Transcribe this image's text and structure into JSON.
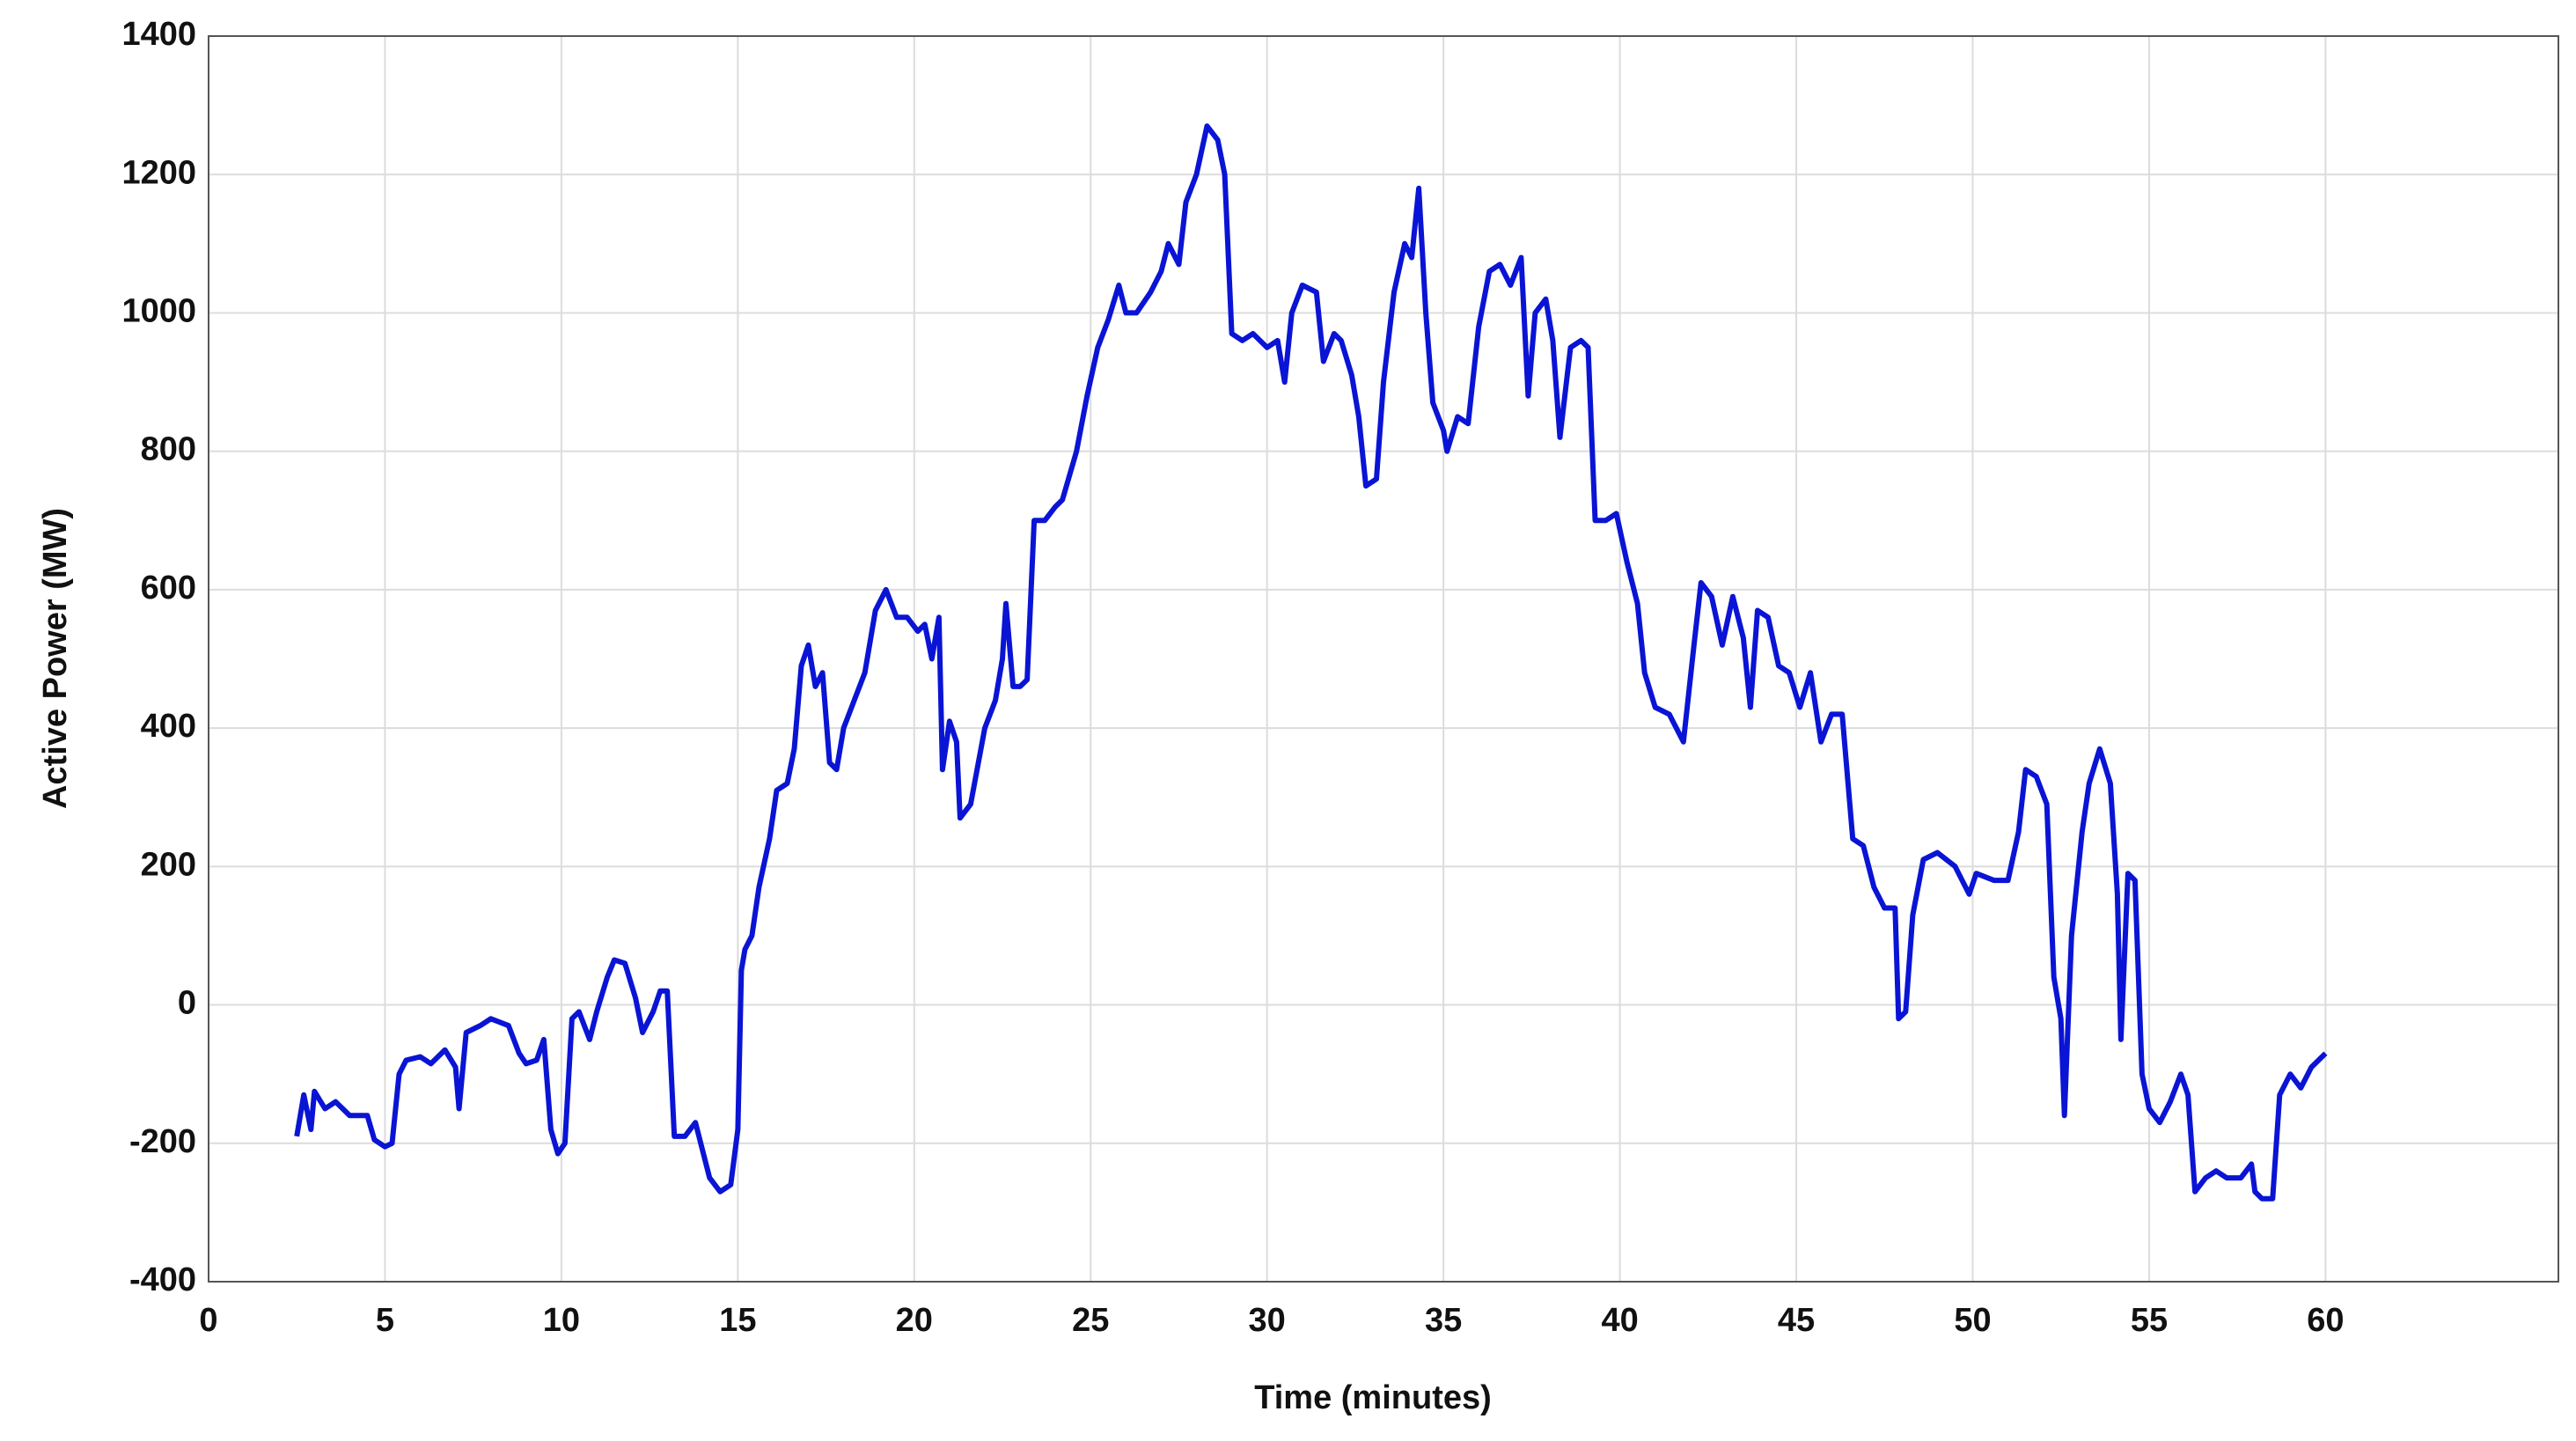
{
  "chart_data": {
    "type": "line",
    "xlabel": "Time (minutes)",
    "ylabel": "Active Power (MW)",
    "xlim": [
      0,
      66.6
    ],
    "ylim": [
      -400,
      1400
    ],
    "xticks": [
      0,
      5,
      10,
      15,
      20,
      25,
      30,
      35,
      40,
      45,
      50,
      55,
      60
    ],
    "yticks": [
      -400,
      -200,
      0,
      200,
      400,
      600,
      800,
      1000,
      1200,
      1400
    ],
    "grid": true,
    "series": [
      {
        "color": "#0a14d4",
        "x": [
          2.5,
          2.7,
          2.9,
          3.0,
          3.3,
          3.6,
          4.0,
          4.5,
          4.7,
          5.0,
          5.2,
          5.4,
          5.6,
          6.0,
          6.3,
          6.7,
          7.0,
          7.1,
          7.3,
          7.7,
          8.0,
          8.5,
          8.8,
          9.0,
          9.3,
          9.5,
          9.7,
          9.9,
          10.1,
          10.3,
          10.5,
          10.8,
          11.0,
          11.3,
          11.5,
          11.8,
          12.1,
          12.3,
          12.6,
          12.8,
          13.0,
          13.2,
          13.5,
          13.8,
          14.2,
          14.5,
          14.8,
          15.0,
          15.1,
          15.2,
          15.4,
          15.6,
          15.9,
          16.1,
          16.4,
          16.6,
          16.8,
          17.0,
          17.2,
          17.4,
          17.6,
          17.8,
          18.0,
          18.3,
          18.6,
          18.9,
          19.2,
          19.5,
          19.8,
          20.1,
          20.3,
          20.5,
          20.7,
          20.8,
          21.0,
          21.2,
          21.3,
          21.6,
          22.0,
          22.3,
          22.5,
          22.6,
          22.8,
          23.0,
          23.2,
          23.4,
          23.7,
          24.0,
          24.2,
          24.6,
          24.9,
          25.2,
          25.5,
          25.8,
          26.0,
          26.3,
          26.7,
          27.0,
          27.2,
          27.5,
          27.7,
          28.0,
          28.3,
          28.6,
          28.8,
          29.0,
          29.3,
          29.6,
          30.0,
          30.3,
          30.5,
          30.7,
          31.0,
          31.4,
          31.6,
          31.9,
          32.1,
          32.4,
          32.6,
          32.8,
          33.1,
          33.3,
          33.6,
          33.9,
          34.1,
          34.3,
          34.5,
          34.7,
          35.0,
          35.1,
          35.4,
          35.7,
          36.0,
          36.3,
          36.6,
          36.9,
          37.2,
          37.4,
          37.6,
          37.9,
          38.1,
          38.3,
          38.6,
          38.9,
          39.1,
          39.3,
          39.6,
          39.9,
          40.2,
          40.5,
          40.7,
          41.0,
          41.4,
          41.8,
          42.1,
          42.3,
          42.6,
          42.9,
          43.2,
          43.5,
          43.7,
          43.9,
          44.2,
          44.5,
          44.8,
          45.1,
          45.4,
          45.7,
          46.0,
          46.3,
          46.6,
          46.9,
          47.2,
          47.5,
          47.8,
          47.9,
          48.1,
          48.3,
          48.6,
          49.0,
          49.5,
          49.9,
          50.1,
          50.6,
          51.0,
          51.3,
          51.5,
          51.8,
          52.1,
          52.3,
          52.5,
          52.6,
          52.8,
          53.1,
          53.3,
          53.6,
          53.9,
          54.1,
          54.2,
          54.4,
          54.6,
          54.8,
          55.0,
          55.3,
          55.6,
          55.9,
          56.1,
          56.3,
          56.6,
          56.9,
          57.2,
          57.6,
          57.9,
          58.0,
          58.2,
          58.5,
          58.7,
          59.0,
          59.3,
          59.6,
          60.0
        ],
        "values": [
          -190,
          -130,
          -180,
          -125,
          -150,
          -140,
          -160,
          -160,
          -195,
          -205,
          -200,
          -100,
          -80,
          -75,
          -85,
          -65,
          -90,
          -150,
          -40,
          -30,
          -20,
          -30,
          -70,
          -85,
          -80,
          -50,
          -180,
          -215,
          -200,
          -20,
          -10,
          -50,
          -10,
          40,
          65,
          60,
          10,
          -40,
          -10,
          20,
          20,
          -190,
          -190,
          -170,
          -250,
          -270,
          -260,
          -180,
          50,
          80,
          100,
          170,
          240,
          310,
          320,
          370,
          490,
          520,
          460,
          480,
          350,
          340,
          400,
          440,
          480,
          570,
          600,
          560,
          560,
          540,
          550,
          500,
          560,
          340,
          410,
          380,
          270,
          290,
          400,
          440,
          500,
          580,
          460,
          460,
          470,
          700,
          700,
          720,
          730,
          800,
          880,
          950,
          990,
          1040,
          1000,
          1000,
          1030,
          1060,
          1100,
          1070,
          1160,
          1200,
          1270,
          1250,
          1200,
          970,
          960,
          970,
          950,
          960,
          900,
          1000,
          1040,
          1030,
          930,
          970,
          960,
          910,
          850,
          750,
          760,
          900,
          1030,
          1100,
          1080,
          1180,
          1000,
          870,
          830,
          800,
          850,
          840,
          980,
          1060,
          1070,
          1040,
          1080,
          880,
          1000,
          1020,
          960,
          820,
          950,
          960,
          950,
          700,
          700,
          710,
          640,
          580,
          480,
          430,
          420,
          380,
          520,
          610,
          590,
          520,
          590,
          530,
          430,
          570,
          560,
          490,
          480,
          430,
          480,
          380,
          420,
          420,
          240,
          230,
          170,
          140,
          140,
          -20,
          -10,
          130,
          210,
          220,
          200,
          160,
          190,
          180,
          180,
          250,
          340,
          330,
          290,
          40,
          -20,
          -160,
          100,
          250,
          320,
          370,
          320,
          160,
          -50,
          190,
          180,
          -100,
          -150,
          -170,
          -140,
          -100,
          -130,
          -270,
          -250,
          -240,
          -250,
          -250,
          -230,
          -270,
          -280,
          -280,
          -130,
          -100,
          -120,
          -90,
          -70
        ]
      }
    ]
  }
}
